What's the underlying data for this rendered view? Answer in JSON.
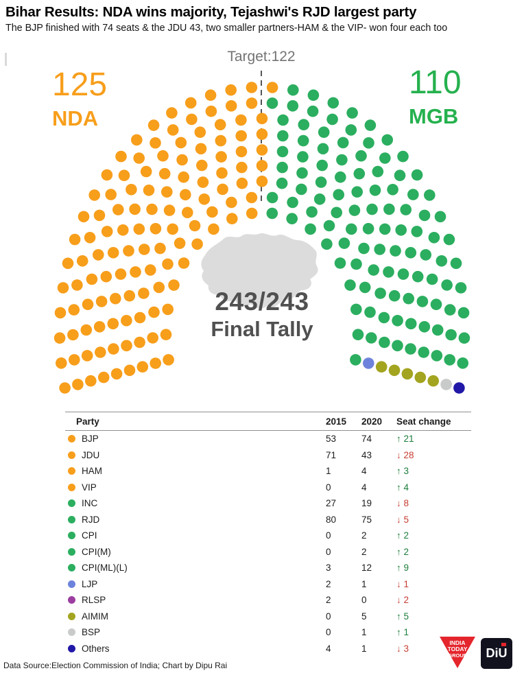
{
  "page": {
    "title": "Bihar Results: NDA wins majority, Tejashwi's RJD largest party",
    "subtitle": "The BJP finished with 74 seats & the JDU 43, two smaller partners-HAM & the VIP- won four each too",
    "footer_source": "Data Source:Election Commission of India; Chart by Dipu Rai"
  },
  "chart_data": {
    "type": "other",
    "subtype": "parliament-hemicycle",
    "title": "Bihar Results: NDA wins majority, Tejashwi's RJD largest party",
    "total_seats": 243,
    "target": {
      "label": "Target:122",
      "value": 122
    },
    "center_label": {
      "tally": "243/243",
      "caption": "Final Tally"
    },
    "blocs": [
      {
        "name": "NDA",
        "seats": 125,
        "color": "#F79E1B",
        "side": "left"
      },
      {
        "name": "MGB",
        "seats": 110,
        "color": "#25B14E",
        "side": "right"
      }
    ],
    "seat_groups": [
      {
        "name": "NDA",
        "seats": 125,
        "color": "#F79E1B"
      },
      {
        "name": "MGB",
        "seats": 110,
        "color": "#2BAE5F"
      },
      {
        "name": "LJP",
        "seats": 1,
        "color": "#6D83DB"
      },
      {
        "name": "AIMIM",
        "seats": 5,
        "color": "#A3A41F"
      },
      {
        "name": "BSP",
        "seats": 1,
        "color": "#C9CBCA"
      },
      {
        "name": "Others",
        "seats": 1,
        "color": "#2118A8"
      }
    ],
    "table": {
      "columns": [
        "Party",
        "2015",
        "2020",
        "Seat change"
      ],
      "rows": [
        {
          "party": "BJP",
          "color": "#F79E1B",
          "v2015": "53",
          "v2020": "74",
          "change": "21",
          "direction": "up"
        },
        {
          "party": "JDU",
          "color": "#F79E1B",
          "v2015": "71",
          "v2020": "43",
          "change": "28",
          "direction": "down"
        },
        {
          "party": "HAM",
          "color": "#F79E1B",
          "v2015": "1",
          "v2020": "4",
          "change": "3",
          "direction": "up"
        },
        {
          "party": "VIP",
          "color": "#F79E1B",
          "v2015": "0",
          "v2020": "4",
          "change": "4",
          "direction": "up"
        },
        {
          "party": "INC",
          "color": "#2BAE5F",
          "v2015": "27",
          "v2020": "19",
          "change": "8",
          "direction": "down"
        },
        {
          "party": "RJD",
          "color": "#2BAE5F",
          "v2015": "80",
          "v2020": "75",
          "change": "5",
          "direction": "down"
        },
        {
          "party": "CPI",
          "color": "#2BAE5F",
          "v2015": "0",
          "v2020": "2",
          "change": "2",
          "direction": "up"
        },
        {
          "party": "CPI(M)",
          "color": "#2BAE5F",
          "v2015": "0",
          "v2020": "2",
          "change": "2",
          "direction": "up"
        },
        {
          "party": "CPI(ML)(L)",
          "color": "#2BAE5F",
          "v2015": "3",
          "v2020": "12",
          "change": "9",
          "direction": "up"
        },
        {
          "party": "LJP",
          "color": "#6D83DB",
          "v2015": "2",
          "v2020": "1",
          "change": "1",
          "direction": "down"
        },
        {
          "party": "RLSP",
          "color": "#9B3EA0",
          "v2015": "2",
          "v2020": "0",
          "change": "2",
          "direction": "down"
        },
        {
          "party": "AIMIM",
          "color": "#A3A41F",
          "v2015": "0",
          "v2020": "5",
          "change": "5",
          "direction": "up"
        },
        {
          "party": "BSP",
          "color": "#C9CBCA",
          "v2015": "0",
          "v2020": "1",
          "change": "1",
          "direction": "up"
        },
        {
          "party": "Others",
          "color": "#2118A8",
          "v2015": "4",
          "v2020": "1",
          "change": "3",
          "direction": "down"
        }
      ]
    },
    "colors": {
      "up": "#1B7E3C",
      "down": "#C63D32",
      "map": "#DCDCDC",
      "target_line": "#555555"
    }
  },
  "logos": {
    "india_today": {
      "lines": [
        "INDIA",
        "TODAY",
        "GROUP"
      ],
      "color": "#E4252C"
    },
    "diu": {
      "label": "DiU"
    }
  }
}
